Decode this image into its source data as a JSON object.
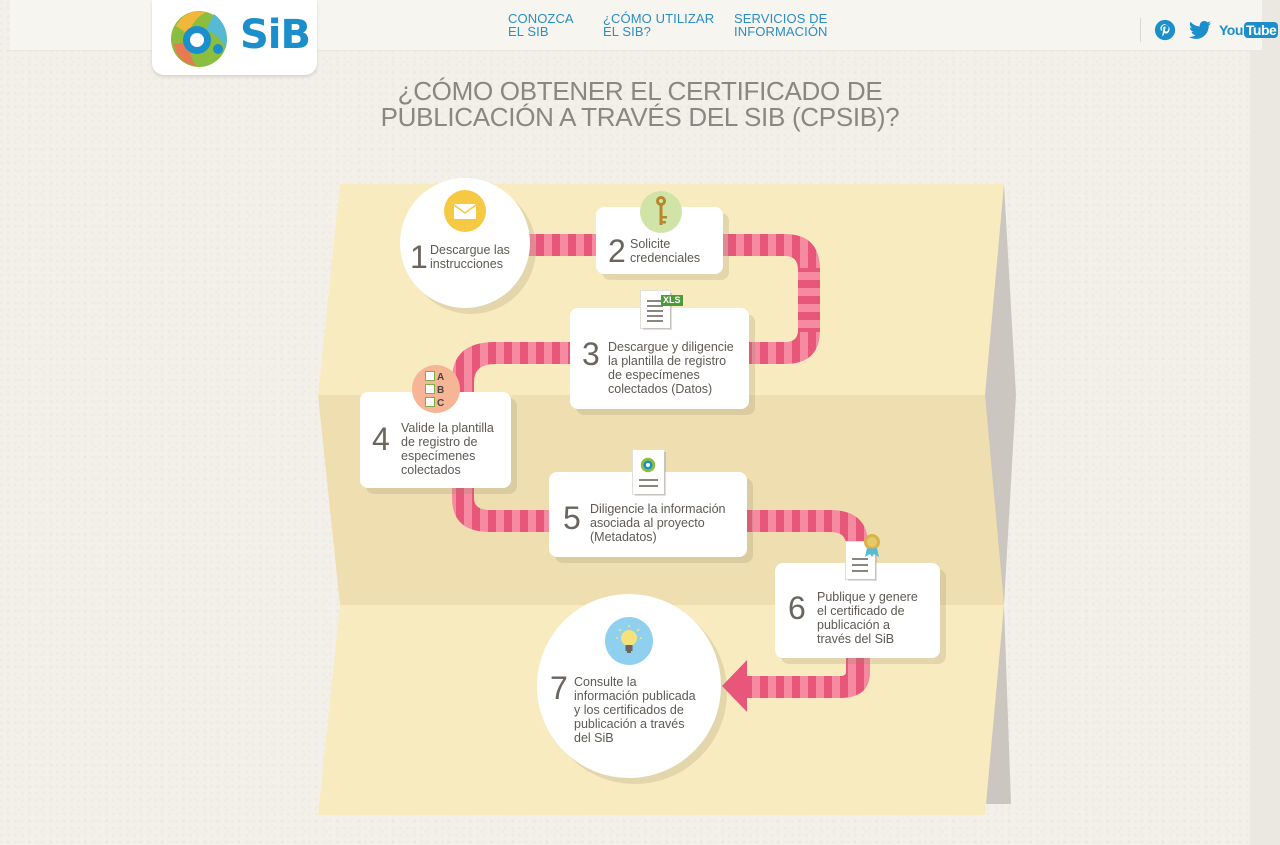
{
  "header": {
    "logo_text": "SiB",
    "nav": [
      {
        "label": "CONOZCA\nEL SIB"
      },
      {
        "label": "¿CÓMO UTILIZAR\nEL SIB?"
      },
      {
        "label": "SERVICIOS DE\nINFORMACIÓN"
      }
    ],
    "social": [
      {
        "icon": "pinterest-icon"
      },
      {
        "icon": "twitter-icon"
      },
      {
        "icon": "youtube-icon",
        "label_you": "You",
        "label_tube": "Tube"
      }
    ]
  },
  "page_title": "¿CÓMO OBTENER EL CERTIFICADO DE\nPUBLICACIÓN A TRAVÉS DEL SIB (CPSIB)?",
  "steps": [
    {
      "number": "1",
      "text": "Descargue las\ninstrucciones",
      "icon": "envelope-icon"
    },
    {
      "number": "2",
      "text": "Solicite\ncredenciales",
      "icon": "key-icon"
    },
    {
      "number": "3",
      "text": "Descargue y diligencie\nla plantilla de registro\nde especímenes\ncolectados (Datos)",
      "icon": "xls-document-icon",
      "badge": "XLS"
    },
    {
      "number": "4",
      "text": "Valide la plantilla\nde registro de\nespecímenes\ncolectados",
      "icon": "abc-checklist-icon",
      "checks": [
        "A",
        "B",
        "C"
      ]
    },
    {
      "number": "5",
      "text": "Diligencie la información\nasociada al proyecto\n(Metadatos)",
      "icon": "metadata-document-icon"
    },
    {
      "number": "6",
      "text": "Publique y genere\nel certificado de\npublicación a\ntravés del SiB",
      "icon": "certificate-document-icon"
    },
    {
      "number": "7",
      "text": "Consulte la\ninformación publicada\ny los certificados de\npublicación a través\ndel SiB",
      "icon": "lightbulb-icon"
    }
  ],
  "colors": {
    "brand_blue": "#1a8fcb",
    "path_pink": "#e8577a",
    "path_stripe": "#f58aa0",
    "paper_yellow": "#f9ebc0",
    "paper_fold": "#efdfb0"
  }
}
